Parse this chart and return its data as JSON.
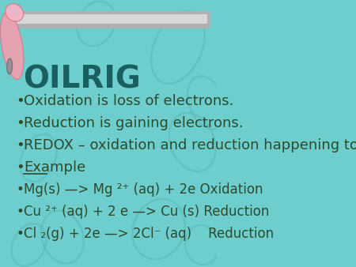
{
  "bg_color": "#6ecece",
  "title": "OILRIG",
  "title_color": "#1a5f5f",
  "title_fontsize": 28,
  "bullet_color": "#2d4a2d",
  "bullet_fontsize": 13,
  "bullets": [
    "Oxidation is loss of electrons.",
    "Reduction is gaining electrons.",
    "REDOX – oxidation and reduction happening together.",
    "Example",
    "Mg(s) —> Mg ²⁺ (aq) + 2e Oxidation",
    "Cu ²⁺ (aq) + 2 e —> Cu (s) Reduction",
    "Cl ₂(g) + 2e —> 2Cl⁻ (aq)    Reduction"
  ],
  "underline_bullet": 3,
  "bar_color": "#b0b0b0",
  "bar_highlight": "#d8d8d8"
}
